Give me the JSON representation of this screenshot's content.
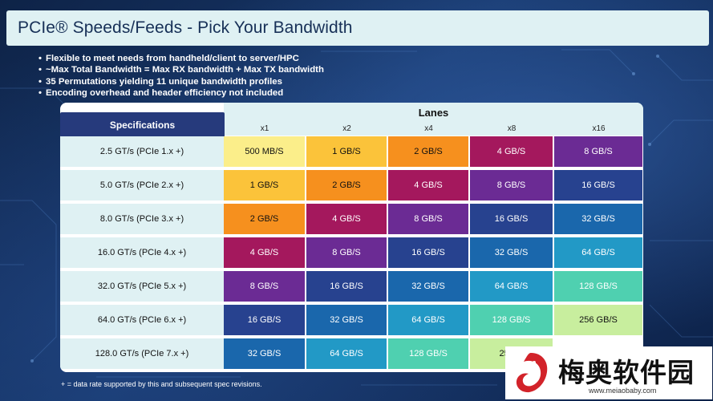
{
  "title": "PCIe® Speeds/Feeds - Pick Your Bandwidth",
  "bullets": [
    "Flexible to meet needs from handheld/client to server/HPC",
    "~Max Total Bandwidth = Max RX bandwidth + Max TX bandwidth",
    "35 Permutations yielding 11 unique bandwidth profiles",
    "Encoding overhead and header efficiency not included"
  ],
  "table": {
    "spec_header": "Specifications",
    "lanes_header": "Lanes",
    "lane_labels": [
      "x1",
      "x2",
      "x4",
      "x8",
      "x16"
    ],
    "rows": [
      {
        "spec": "2.5 GT/s (PCIe 1.x +)",
        "cells": [
          "500 MB/S",
          "1 GB/S",
          "2 GB/S",
          "4 GB/S",
          "8 GB/S"
        ]
      },
      {
        "spec": "5.0 GT/s (PCIe 2.x +)",
        "cells": [
          "1 GB/S",
          "2 GB/S",
          "4 GB/S",
          "8 GB/S",
          "16 GB/S"
        ]
      },
      {
        "spec": "8.0 GT/s (PCIe 3.x +)",
        "cells": [
          "2 GB/S",
          "4 GB/S",
          "8 GB/S",
          "16 GB/S",
          "32 GB/S"
        ]
      },
      {
        "spec": "16.0 GT/s (PCIe 4.x +)",
        "cells": [
          "4 GB/S",
          "8 GB/S",
          "16 GB/S",
          "32 GB/S",
          "64 GB/S"
        ]
      },
      {
        "spec": "32.0 GT/s (PCIe 5.x +)",
        "cells": [
          "8 GB/S",
          "16 GB/S",
          "32 GB/S",
          "64 GB/S",
          "128 GB/S"
        ]
      },
      {
        "spec": "64.0 GT/s (PCIe 6.x +)",
        "cells": [
          "16 GB/S",
          "32 GB/S",
          "64 GB/S",
          "128 GB/S",
          "256 GB/S"
        ]
      },
      {
        "spec": "128.0 GT/s (PCIe 7.x +)",
        "cells": [
          "32 GB/S",
          "64 GB/S",
          "128 GB/S",
          "256 G",
          ""
        ]
      }
    ],
    "bandwidth_colors": {
      "500 MB/S": "#fbee8a",
      "1 GB/S": "#fbc33a",
      "2 GB/S": "#f6901e",
      "4 GB/S": "#a4185d",
      "8 GB/S": "#6b2b94",
      "16 GB/S": "#27428f",
      "32 GB/S": "#1a67ac",
      "64 GB/S": "#2299c6",
      "128 GB/S": "#4fd0b0",
      "256 GB/S": "#c8ee9e",
      "256 G": "#c8ee9e",
      "": "#ffffff"
    }
  },
  "footnote": "+ = data rate supported by this and subsequent spec revisions.",
  "watermark": {
    "name": "梅奥软件园",
    "url": "www.meiaobaby.com"
  }
}
